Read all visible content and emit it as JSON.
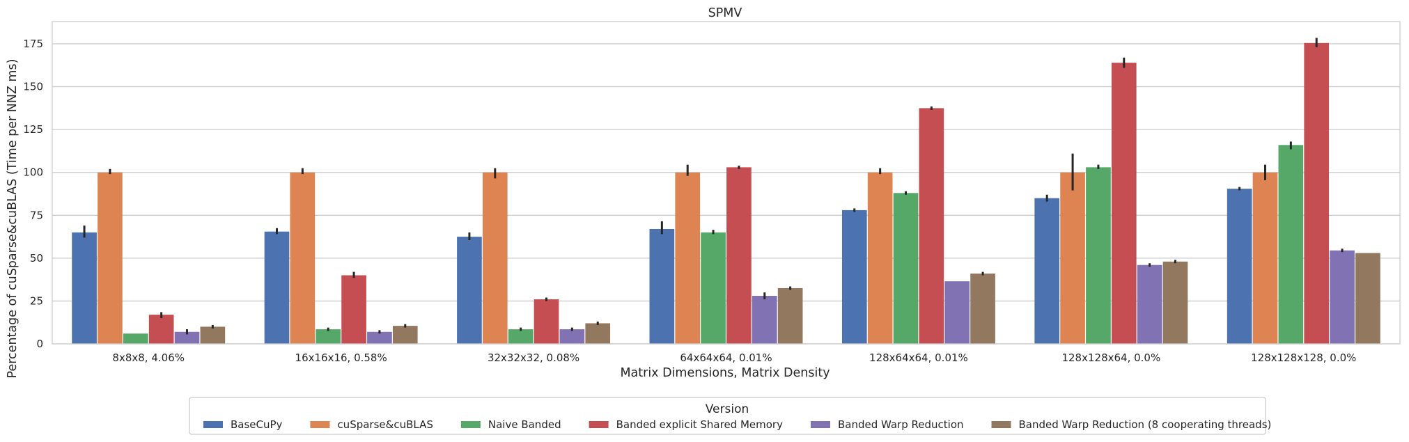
{
  "chart_data": {
    "type": "bar",
    "title": "SPMV",
    "xlabel": "Matrix Dimensions, Matrix Density",
    "ylabel": "Percentage of cuSparse&cuBLAS (Time per NNZ ms)",
    "ylim": [
      0,
      188
    ],
    "yticks": [
      0,
      25,
      50,
      75,
      100,
      125,
      150,
      175
    ],
    "grid": "horizontal",
    "legend_position": "bottom-center",
    "legend_title": "Version",
    "categories": [
      "8x8x8, 4.06%",
      "16x16x16, 0.58%",
      "32x32x32, 0.08%",
      "64x64x64, 0.01%",
      "128x64x64, 0.01%",
      "128x128x64, 0.0%",
      "128x128x128, 0.0%"
    ],
    "series": [
      {
        "name": "BaseCuPy",
        "color": "#4c72b0",
        "values": [
          65,
          65.5,
          62.5,
          67,
          78,
          85,
          90.5
        ],
        "err_low": [
          62,
          64,
          60.5,
          64,
          77,
          83,
          89.5
        ],
        "err_high": [
          69,
          67.5,
          65,
          71.5,
          79,
          87,
          91.5
        ]
      },
      {
        "name": "cuSparse&cuBLAS",
        "color": "#dd8452",
        "values": [
          100,
          100,
          100,
          100,
          100,
          100,
          100
        ],
        "err_low": [
          99,
          99,
          96.5,
          98,
          99,
          89.5,
          95.5
        ],
        "err_high": [
          102,
          102.5,
          102.5,
          104.5,
          102.5,
          111,
          104.5
        ]
      },
      {
        "name": "Naive Banded",
        "color": "#55a868",
        "values": [
          6,
          8.5,
          8.5,
          65,
          88,
          103,
          116
        ],
        "err_low": [
          6,
          7.5,
          7.5,
          64,
          87,
          102,
          113.5
        ],
        "err_high": [
          6,
          9.5,
          9.5,
          66.5,
          89,
          104.5,
          118
        ]
      },
      {
        "name": "Banded explicit Shared Memory",
        "color": "#c44e52",
        "values": [
          17,
          40,
          26,
          103,
          137.5,
          164,
          175.5
        ],
        "err_low": [
          15,
          38.5,
          25,
          102,
          136.5,
          161,
          173
        ],
        "err_high": [
          18.5,
          42,
          27,
          104,
          138.5,
          167,
          178.5
        ]
      },
      {
        "name": "Banded Warp Reduction",
        "color": "#8172b3",
        "values": [
          7,
          7,
          8.5,
          28,
          36.5,
          46,
          54.5
        ],
        "err_low": [
          5.5,
          6,
          7.5,
          26,
          36.5,
          45,
          53.5
        ],
        "err_high": [
          8.5,
          8,
          9.5,
          30,
          36.5,
          47,
          55.5
        ]
      },
      {
        "name": "Banded Warp Reduction (8 cooperating threads)",
        "color": "#937860",
        "values": [
          10,
          10.5,
          12,
          32.5,
          41,
          48,
          53
        ],
        "err_low": [
          9,
          9.5,
          11,
          31.5,
          40,
          47,
          53
        ],
        "err_high": [
          11,
          11.5,
          13,
          33.5,
          42,
          49,
          53
        ]
      }
    ]
  }
}
